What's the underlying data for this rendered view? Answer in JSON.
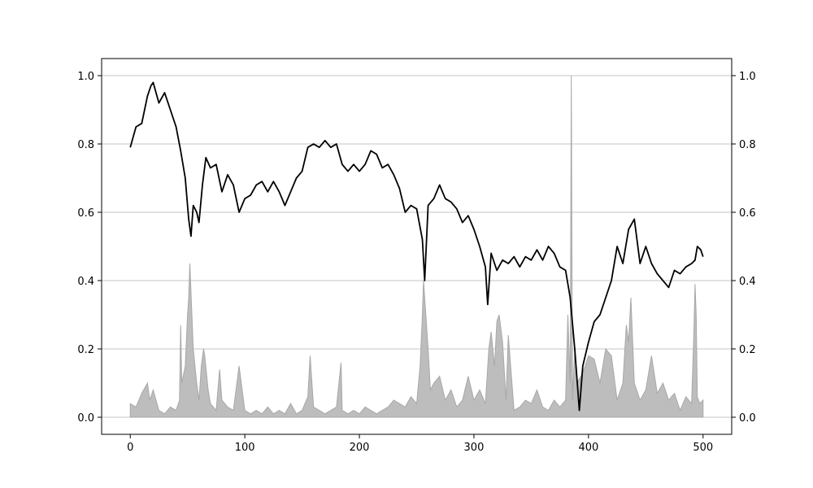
{
  "chart_data": {
    "type": "line",
    "title": "",
    "xlabel": "",
    "ylabel": "",
    "xlim": [
      -25,
      525
    ],
    "ylim": [
      -0.05,
      1.05
    ],
    "x_ticks": [
      0,
      100,
      200,
      300,
      400,
      500
    ],
    "y_ticks": [
      0.0,
      0.2,
      0.4,
      0.6,
      0.8,
      1.0
    ],
    "x_tick_labels": [
      "0",
      "100",
      "200",
      "300",
      "400",
      "500"
    ],
    "y_tick_labels_left": [
      "0.0",
      "0.2",
      "0.4",
      "0.6",
      "0.8",
      "1.0"
    ],
    "y_tick_labels_right": [
      "0.0",
      "0.2",
      "0.4",
      "0.6",
      "0.8",
      "1.0"
    ],
    "grid": "horizontal",
    "legend": "none",
    "series": [
      {
        "kind": "line",
        "color": "#000000",
        "x": [
          0,
          5,
          10,
          15,
          18,
          20,
          25,
          30,
          35,
          40,
          44,
          48,
          51,
          53,
          55,
          58,
          60,
          63,
          66,
          70,
          75,
          80,
          85,
          90,
          95,
          100,
          105,
          110,
          115,
          120,
          125,
          130,
          135,
          140,
          145,
          150,
          155,
          160,
          165,
          170,
          175,
          180,
          185,
          190,
          195,
          200,
          205,
          210,
          215,
          220,
          225,
          230,
          235,
          240,
          245,
          250,
          255,
          257,
          260,
          265,
          270,
          275,
          280,
          285,
          290,
          295,
          300,
          305,
          310,
          312,
          315,
          320,
          325,
          330,
          335,
          340,
          345,
          350,
          355,
          360,
          365,
          370,
          375,
          380,
          384,
          388,
          392,
          395,
          400,
          405,
          410,
          415,
          420,
          425,
          430,
          435,
          440,
          445,
          450,
          455,
          460,
          465,
          470,
          475,
          480,
          485,
          490,
          493,
          495,
          498,
          500
        ],
        "y": [
          0.79,
          0.85,
          0.86,
          0.94,
          0.97,
          0.98,
          0.92,
          0.95,
          0.9,
          0.85,
          0.78,
          0.7,
          0.58,
          0.53,
          0.62,
          0.6,
          0.57,
          0.68,
          0.76,
          0.73,
          0.74,
          0.66,
          0.71,
          0.68,
          0.6,
          0.64,
          0.65,
          0.68,
          0.69,
          0.66,
          0.69,
          0.66,
          0.62,
          0.66,
          0.7,
          0.72,
          0.79,
          0.8,
          0.79,
          0.81,
          0.79,
          0.8,
          0.74,
          0.72,
          0.74,
          0.72,
          0.74,
          0.78,
          0.77,
          0.73,
          0.74,
          0.71,
          0.67,
          0.6,
          0.62,
          0.61,
          0.52,
          0.4,
          0.62,
          0.64,
          0.68,
          0.64,
          0.63,
          0.61,
          0.57,
          0.59,
          0.55,
          0.5,
          0.44,
          0.33,
          0.48,
          0.43,
          0.46,
          0.45,
          0.47,
          0.44,
          0.47,
          0.46,
          0.49,
          0.46,
          0.5,
          0.48,
          0.44,
          0.43,
          0.35,
          0.2,
          0.02,
          0.15,
          0.22,
          0.28,
          0.3,
          0.35,
          0.4,
          0.5,
          0.45,
          0.55,
          0.58,
          0.45,
          0.5,
          0.45,
          0.42,
          0.4,
          0.38,
          0.43,
          0.42,
          0.44,
          0.45,
          0.46,
          0.5,
          0.49,
          0.47
        ]
      },
      {
        "kind": "area",
        "color": "#bdbdbd",
        "edge_color": "#a8a8a8",
        "x": [
          0,
          5,
          10,
          15,
          17,
          20,
          25,
          30,
          35,
          40,
          43,
          44,
          45,
          48,
          50,
          51,
          52,
          55,
          58,
          60,
          62,
          64,
          65,
          68,
          70,
          75,
          78,
          80,
          85,
          90,
          95,
          100,
          105,
          110,
          115,
          120,
          125,
          130,
          135,
          140,
          145,
          150,
          155,
          157,
          160,
          165,
          170,
          175,
          180,
          184,
          185,
          190,
          195,
          200,
          205,
          210,
          215,
          220,
          225,
          230,
          235,
          240,
          245,
          250,
          253,
          255,
          256,
          257,
          258,
          260,
          262,
          265,
          270,
          275,
          280,
          285,
          290,
          295,
          300,
          305,
          310,
          313,
          315,
          318,
          320,
          322,
          325,
          328,
          330,
          335,
          340,
          345,
          350,
          355,
          360,
          365,
          370,
          375,
          380,
          382,
          384,
          385,
          386,
          388,
          390,
          395,
          400,
          405,
          410,
          415,
          420,
          425,
          430,
          433,
          435,
          437,
          440,
          445,
          450,
          455,
          460,
          465,
          470,
          475,
          480,
          485,
          490,
          492,
          493,
          494,
          495,
          497,
          500
        ],
        "y": [
          0.04,
          0.03,
          0.07,
          0.1,
          0.05,
          0.08,
          0.02,
          0.01,
          0.03,
          0.02,
          0.05,
          0.27,
          0.1,
          0.15,
          0.3,
          0.35,
          0.45,
          0.2,
          0.1,
          0.05,
          0.15,
          0.2,
          0.18,
          0.08,
          0.04,
          0.02,
          0.14,
          0.05,
          0.03,
          0.02,
          0.15,
          0.02,
          0.01,
          0.02,
          0.01,
          0.03,
          0.01,
          0.02,
          0.01,
          0.04,
          0.01,
          0.02,
          0.06,
          0.18,
          0.03,
          0.02,
          0.01,
          0.02,
          0.03,
          0.16,
          0.02,
          0.01,
          0.02,
          0.01,
          0.03,
          0.02,
          0.01,
          0.02,
          0.03,
          0.05,
          0.04,
          0.03,
          0.06,
          0.04,
          0.15,
          0.3,
          0.4,
          0.35,
          0.3,
          0.2,
          0.08,
          0.1,
          0.12,
          0.05,
          0.08,
          0.03,
          0.05,
          0.12,
          0.05,
          0.08,
          0.04,
          0.2,
          0.25,
          0.15,
          0.28,
          0.3,
          0.22,
          0.05,
          0.24,
          0.02,
          0.03,
          0.05,
          0.04,
          0.08,
          0.03,
          0.02,
          0.05,
          0.03,
          0.05,
          0.3,
          0.1,
          1.0,
          0.05,
          0.2,
          0.1,
          0.13,
          0.18,
          0.17,
          0.1,
          0.2,
          0.18,
          0.05,
          0.1,
          0.27,
          0.22,
          0.35,
          0.1,
          0.05,
          0.08,
          0.18,
          0.07,
          0.1,
          0.05,
          0.07,
          0.02,
          0.06,
          0.04,
          0.25,
          0.39,
          0.3,
          0.06,
          0.04,
          0.05
        ]
      }
    ]
  }
}
